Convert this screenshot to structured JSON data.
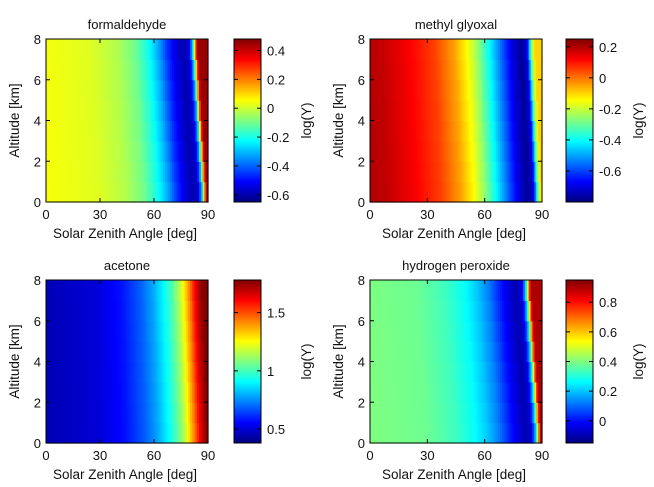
{
  "figure": {
    "x_label": "Solar Zenith Angle [deg]",
    "y_label": "Altitude [km]",
    "colorbar_label": "log(Y)"
  },
  "chart_data": [
    {
      "type": "heatmap",
      "title": "formaldehyde",
      "xlabel": "Solar Zenith Angle [deg]",
      "ylabel": "Altitude [km]",
      "xlim": [
        0,
        90
      ],
      "ylim": [
        0,
        8
      ],
      "xticks": [
        "0",
        "30",
        "60",
        "90"
      ],
      "yticks": [
        "0",
        "2",
        "4",
        "6",
        "8"
      ],
      "colorbar": {
        "label": "log(Y)",
        "range": [
          -0.65,
          0.48
        ],
        "ticks": [
          "0.4",
          "0.2",
          "0",
          "-0.2",
          "-0.4",
          "-0.6"
        ],
        "tick_values": [
          0.4,
          0.2,
          0,
          -0.2,
          -0.4,
          -0.6
        ]
      },
      "profile_sza": [
        0,
        30,
        45,
        55,
        62,
        68,
        73,
        78,
        82,
        85,
        87,
        88,
        89,
        90
      ],
      "profile_logY": [
        0.05,
        0.02,
        -0.03,
        -0.1,
        -0.2,
        -0.32,
        -0.45,
        -0.55,
        -0.6,
        -0.55,
        -0.3,
        0.0,
        0.3,
        0.45
      ],
      "altitude_shift_deg": 6,
      "colormap": "jet"
    },
    {
      "type": "heatmap",
      "title": "methyl glyoxal",
      "xlabel": "Solar Zenith Angle [deg]",
      "ylabel": "Altitude [km]",
      "xlim": [
        0,
        90
      ],
      "ylim": [
        0,
        8
      ],
      "xticks": [
        "0",
        "30",
        "60",
        "90"
      ],
      "yticks": [
        "0",
        "2",
        "4",
        "6",
        "8"
      ],
      "colorbar": {
        "label": "log(Y)",
        "range": [
          -0.8,
          0.25
        ],
        "ticks": [
          "0.2",
          "0",
          "-0.2",
          "-0.4",
          "-0.6"
        ],
        "tick_values": [
          0.2,
          0,
          -0.2,
          -0.4,
          -0.6
        ]
      },
      "profile_sza": [
        0,
        10,
        25,
        38,
        48,
        55,
        60,
        66,
        72,
        78,
        83,
        86,
        88,
        90
      ],
      "profile_logY": [
        0.2,
        0.18,
        0.12,
        0.05,
        -0.05,
        -0.15,
        -0.25,
        -0.4,
        -0.55,
        -0.7,
        -0.78,
        -0.7,
        -0.3,
        -0.1
      ],
      "altitude_shift_deg": 4,
      "colormap": "jet"
    },
    {
      "type": "heatmap",
      "title": "acetone",
      "xlabel": "Solar Zenith Angle [deg]",
      "ylabel": "Altitude [km]",
      "xlim": [
        0,
        90
      ],
      "ylim": [
        0,
        8
      ],
      "xticks": [
        "0",
        "30",
        "60",
        "90"
      ],
      "yticks": [
        "0",
        "2",
        "4",
        "6",
        "8"
      ],
      "colorbar": {
        "label": "log(Y)",
        "range": [
          0.38,
          1.78
        ],
        "ticks": [
          "1.5",
          "1",
          "0.5"
        ],
        "tick_values": [
          1.5,
          1,
          0.5
        ]
      },
      "profile_sza": [
        0,
        30,
        45,
        55,
        62,
        68,
        73,
        77,
        80,
        83,
        85,
        87,
        89,
        90
      ],
      "profile_logY": [
        0.45,
        0.5,
        0.58,
        0.68,
        0.78,
        0.9,
        1.02,
        1.15,
        1.3,
        1.45,
        1.58,
        1.68,
        1.75,
        1.78
      ],
      "altitude_shift_deg": 3,
      "colormap": "jet"
    },
    {
      "type": "heatmap",
      "title": "hydrogen peroxide",
      "xlabel": "Solar Zenith Angle [deg]",
      "ylabel": "Altitude [km]",
      "xlim": [
        0,
        90
      ],
      "ylim": [
        0,
        8
      ],
      "xticks": [
        "0",
        "30",
        "60",
        "90"
      ],
      "yticks": [
        "0",
        "2",
        "4",
        "6",
        "8"
      ],
      "colorbar": {
        "label": "log(Y)",
        "range": [
          -0.15,
          0.95
        ],
        "ticks": [
          "0.8",
          "0.6",
          "0.4",
          "0.2",
          "0"
        ],
        "tick_values": [
          0.8,
          0.6,
          0.4,
          0.2,
          0
        ]
      },
      "profile_sza": [
        0,
        30,
        45,
        55,
        62,
        68,
        73,
        78,
        82,
        85,
        87,
        88,
        89,
        90
      ],
      "profile_logY": [
        0.4,
        0.38,
        0.33,
        0.27,
        0.2,
        0.12,
        0.03,
        -0.05,
        -0.1,
        -0.05,
        0.2,
        0.45,
        0.75,
        0.9
      ],
      "altitude_shift_deg": 6,
      "colormap": "jet"
    }
  ]
}
